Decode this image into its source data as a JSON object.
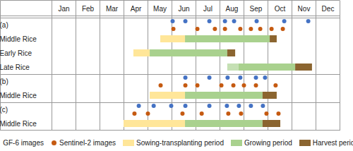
{
  "chart_data": {
    "type": "gantt",
    "categories": [
      "Jan",
      "Feb",
      "Mar",
      "Apr",
      "May",
      "Jun",
      "Jul",
      "Aug",
      "Sep",
      "Oct",
      "Nov",
      "Dec"
    ],
    "xlim": [
      0,
      12
    ],
    "rows": [
      "(a)",
      "Middle Rice",
      "Early Rice",
      "Late Rice",
      "(b)",
      "Middle Rice",
      "(c)",
      "Middle Rice"
    ],
    "legend": "bottom",
    "series": [
      {
        "name": "GF-6 images",
        "type": "scatter",
        "marker": "circle",
        "color": "#4472c4",
        "values": [
          {
            "row": 0,
            "x": 5.03
          },
          {
            "row": 0,
            "x": 5.56
          },
          {
            "row": 0,
            "x": 6.56
          },
          {
            "row": 0,
            "x": 7.21
          },
          {
            "row": 0,
            "x": 7.59
          },
          {
            "row": 0,
            "x": 8.53
          },
          {
            "row": 0,
            "x": 9.68
          },
          {
            "row": 0,
            "x": 10.68
          },
          {
            "row": 4,
            "x": 5.56
          },
          {
            "row": 4,
            "x": 6.56
          },
          {
            "row": 4,
            "x": 7.32
          },
          {
            "row": 4,
            "x": 7.85
          },
          {
            "row": 4,
            "x": 8.5
          },
          {
            "row": 4,
            "x": 8.88
          },
          {
            "row": 6,
            "x": 3.62
          },
          {
            "row": 6,
            "x": 4.24
          },
          {
            "row": 6,
            "x": 4.97
          },
          {
            "row": 6,
            "x": 5.56
          },
          {
            "row": 6,
            "x": 6.56
          },
          {
            "row": 6,
            "x": 7.29
          },
          {
            "row": 6,
            "x": 7.79
          },
          {
            "row": 6,
            "x": 8.29
          },
          {
            "row": 6,
            "x": 8.79
          }
        ]
      },
      {
        "name": "Sentinel-2 images",
        "type": "scatter",
        "marker": "circle",
        "color": "#c55a11",
        "values": [
          {
            "row": 0,
            "x": 5.06
          },
          {
            "row": 0,
            "x": 6.06
          },
          {
            "row": 0,
            "x": 6.79
          },
          {
            "row": 0,
            "x": 7.21
          },
          {
            "row": 0,
            "x": 7.85
          },
          {
            "row": 0,
            "x": 8.29
          },
          {
            "row": 0,
            "x": 8.68
          },
          {
            "row": 0,
            "x": 9.15
          },
          {
            "row": 0,
            "x": 9.62
          },
          {
            "row": 4,
            "x": 4.53
          },
          {
            "row": 4,
            "x": 5.56
          },
          {
            "row": 4,
            "x": 6.06
          },
          {
            "row": 4,
            "x": 7.06
          },
          {
            "row": 4,
            "x": 7.56
          },
          {
            "row": 4,
            "x": 8.0
          },
          {
            "row": 4,
            "x": 8.5
          },
          {
            "row": 4,
            "x": 9.32
          },
          {
            "row": 6,
            "x": 3.44
          },
          {
            "row": 6,
            "x": 4.0
          },
          {
            "row": 6,
            "x": 5.44
          },
          {
            "row": 6,
            "x": 6.24
          },
          {
            "row": 6,
            "x": 7.35
          },
          {
            "row": 6,
            "x": 7.88
          },
          {
            "row": 6,
            "x": 8.94
          },
          {
            "row": 6,
            "x": 9.44
          }
        ]
      },
      {
        "name": "Sowing-transplanting period",
        "type": "bar",
        "color": "#ffe699",
        "values": [
          {
            "row": 1,
            "start": 4.53,
            "end": 5.56
          },
          {
            "row": 2,
            "start": 3.41,
            "end": 4.09
          },
          {
            "row": 5,
            "start": 4.09,
            "end": 5.56
          },
          {
            "row": 7,
            "start": 3.0,
            "end": 5.56
          }
        ]
      },
      {
        "name": "Growing period",
        "type": "bar",
        "color": "#a9d18e",
        "values": [
          {
            "row": 1,
            "start": 5.56,
            "end": 9.09
          },
          {
            "row": 2,
            "start": 4.09,
            "end": 7.32
          },
          {
            "row": 3,
            "start": 7.32,
            "end": 7.79,
            "color": "#c5e0b4"
          },
          {
            "row": 3,
            "start": 7.79,
            "end": 10.15
          },
          {
            "row": 5,
            "start": 5.56,
            "end": 8.79
          },
          {
            "row": 7,
            "start": 5.56,
            "end": 8.79
          }
        ]
      },
      {
        "name": "Harvest period",
        "type": "bar",
        "color": "#8b6530",
        "values": [
          {
            "row": 1,
            "start": 9.09,
            "end": 9.38
          },
          {
            "row": 2,
            "start": 7.32,
            "end": 7.65
          },
          {
            "row": 3,
            "start": 10.15,
            "end": 10.85
          },
          {
            "row": 5,
            "start": 8.79,
            "end": 9.38
          },
          {
            "row": 7,
            "start": 8.79,
            "end": 9.53
          }
        ]
      }
    ]
  }
}
